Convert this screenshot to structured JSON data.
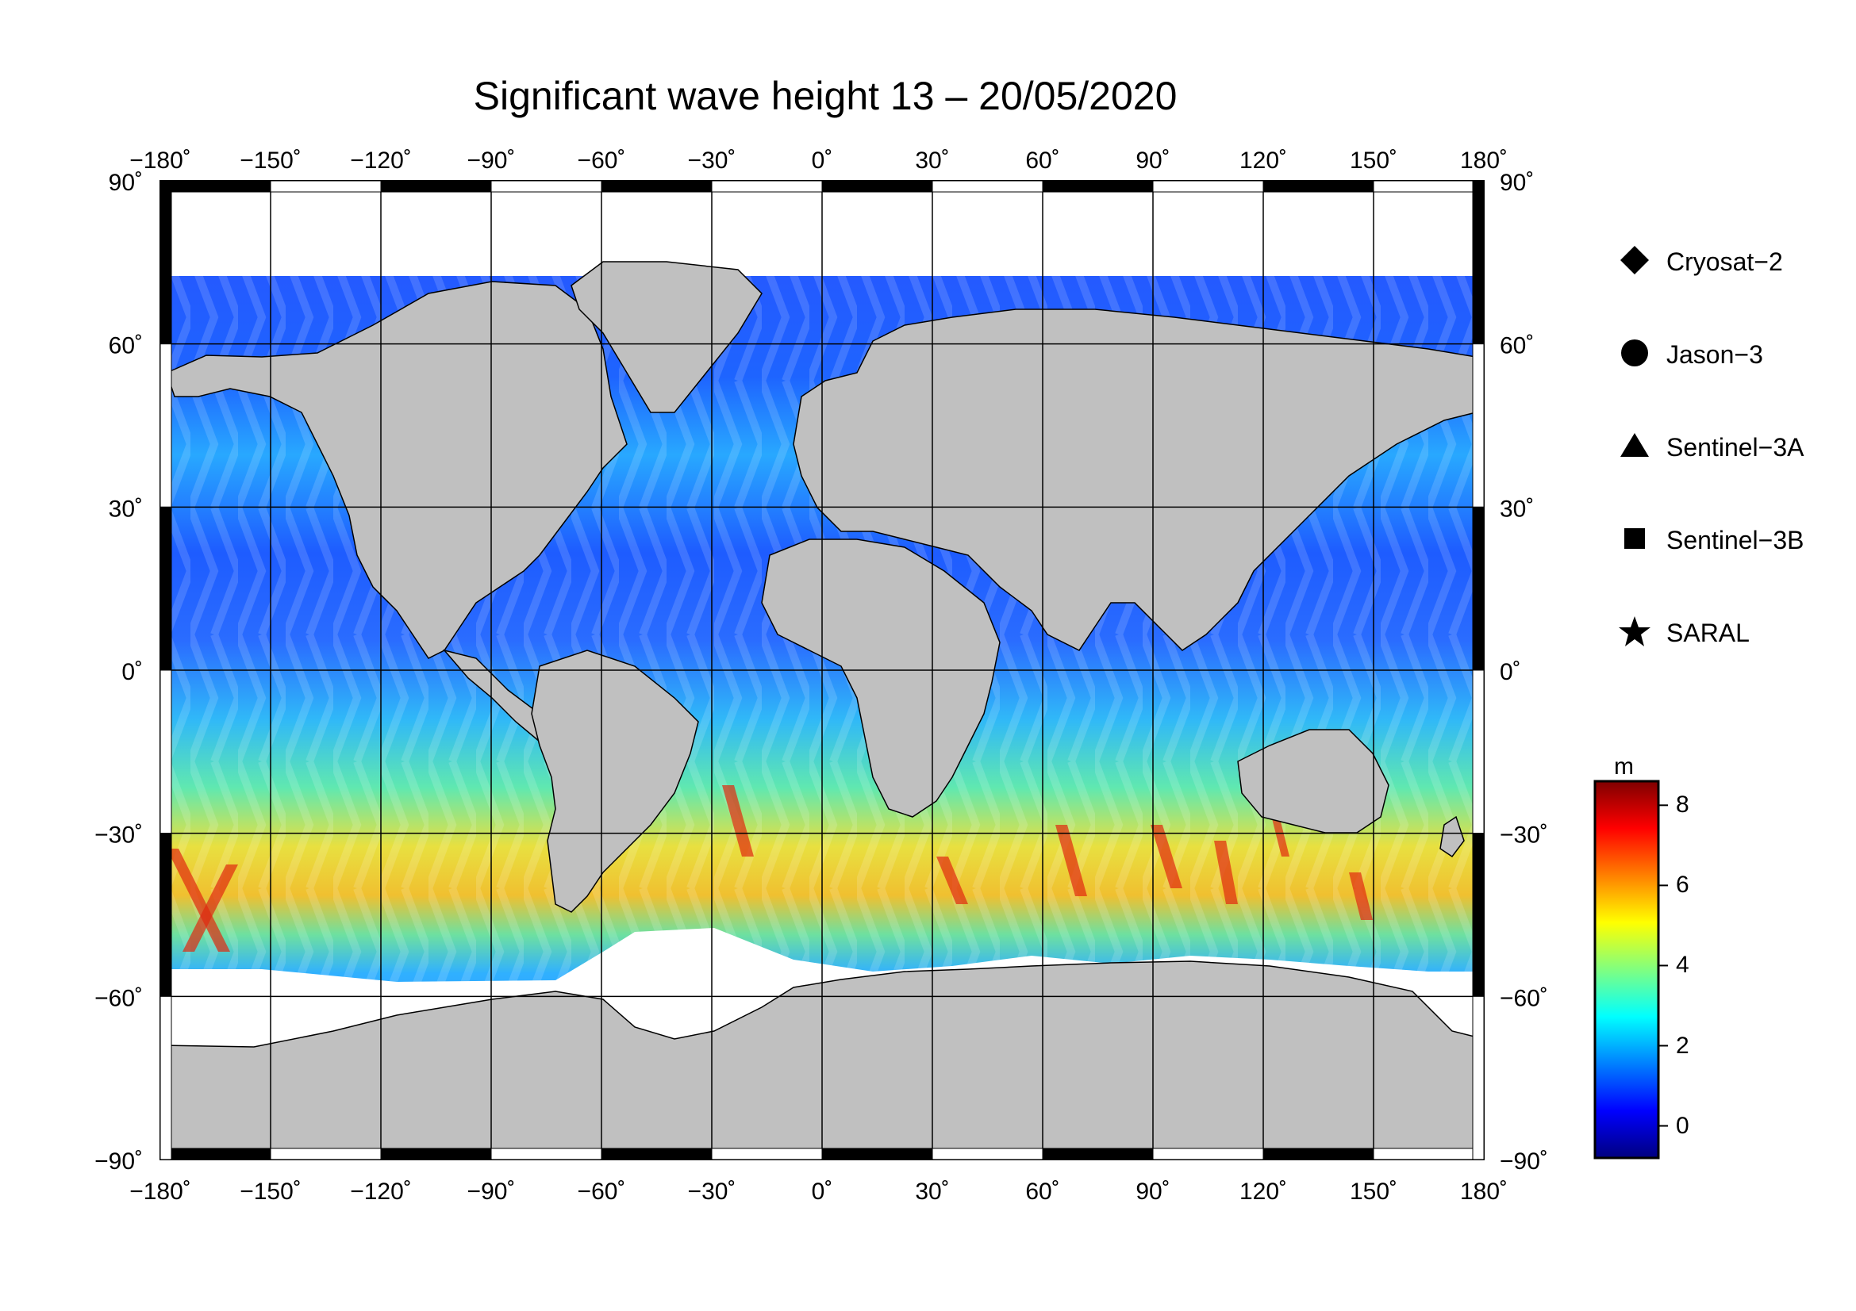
{
  "title": "Significant wave height 13 – 20/05/2020",
  "x_ticks": [
    "−180˚",
    "−150˚",
    "−120˚",
    "−90˚",
    "−60˚",
    "−30˚",
    "0˚",
    "30˚",
    "60˚",
    "90˚",
    "120˚",
    "150˚",
    "180˚"
  ],
  "y_ticks": [
    "90˚",
    "60˚",
    "30˚",
    "0˚",
    "−30˚",
    "−60˚",
    "−90˚"
  ],
  "legend": {
    "items": [
      {
        "label": "Cryosat−2",
        "symbol": "diamond-icon"
      },
      {
        "label": "Jason−3",
        "symbol": "circle-icon"
      },
      {
        "label": "Sentinel−3A",
        "symbol": "triangle-icon"
      },
      {
        "label": "Sentinel−3B",
        "symbol": "square-icon"
      },
      {
        "label": "SARAL",
        "symbol": "star-icon"
      }
    ]
  },
  "colorbar": {
    "unit": "m",
    "ticks": [
      "8",
      "6",
      "4",
      "2",
      "0"
    ],
    "range": [
      -0.8,
      8.6
    ],
    "colors": [
      "#00007f",
      "#0000ff",
      "#0080ff",
      "#00ffff",
      "#80ff80",
      "#ffff00",
      "#ff8000",
      "#ff0000",
      "#7f0000"
    ]
  },
  "colors": {
    "land": "#c0c0c0",
    "ice": "#ffffff",
    "ocean_low": "#1a3cff",
    "ocean_mid": "#22c6f0",
    "ocean_high": "#ff3000"
  }
}
